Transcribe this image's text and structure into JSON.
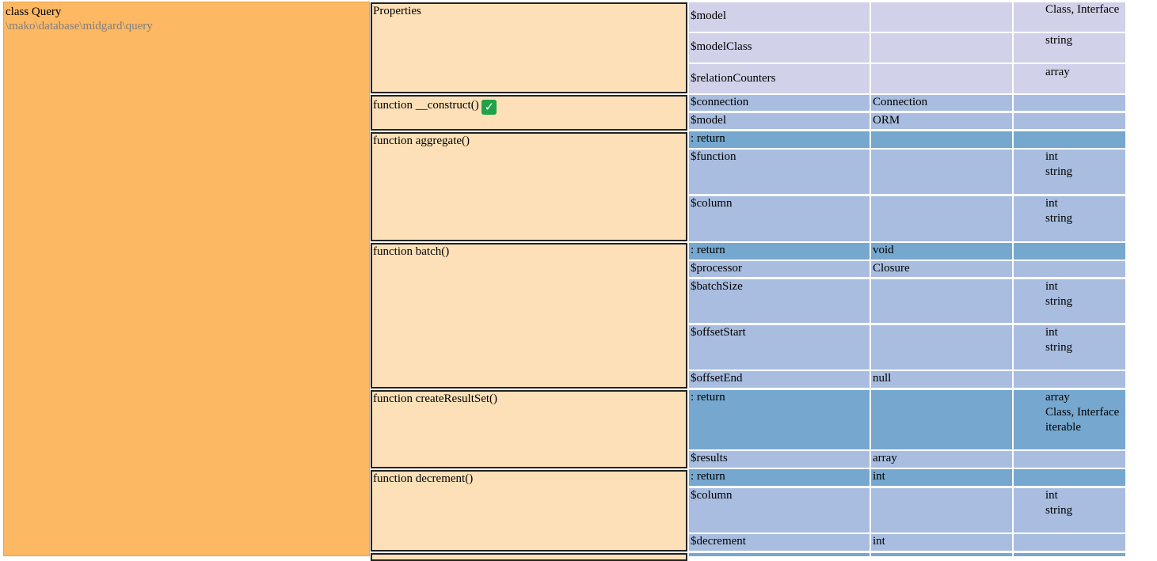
{
  "class": {
    "title": "class Query",
    "namespace": "\\mako\\database\\midgard\\query"
  },
  "functions": {
    "properties": "Properties",
    "construct": "function __construct()",
    "construct_check": "✓",
    "aggregate": "function aggregate()",
    "batch": "function batch()",
    "createResultSet": "function createResultSet()",
    "decrement": "function decrement()"
  },
  "properties": [
    {
      "name": "$model",
      "types": "Class, Interface"
    },
    {
      "name": "$modelClass",
      "types": "string"
    },
    {
      "name": "$relationCounters",
      "types": "array"
    }
  ],
  "construct": [
    {
      "name": "$connection",
      "type": "Connection"
    },
    {
      "name": "$model",
      "type": "ORM"
    }
  ],
  "aggregate": {
    "return": ": return",
    "params": [
      {
        "name": "$function",
        "types": [
          "int",
          "string"
        ]
      },
      {
        "name": "$column",
        "types": [
          "int",
          "string"
        ]
      }
    ]
  },
  "batch": {
    "return": ": return",
    "return_type": "void",
    "processor": {
      "name": "$processor",
      "type": "Closure"
    },
    "params": [
      {
        "name": "$batchSize",
        "types": [
          "int",
          "string"
        ]
      },
      {
        "name": "$offsetStart",
        "types": [
          "int",
          "string"
        ]
      }
    ],
    "offsetEnd": {
      "name": "$offsetEnd",
      "type": "null"
    }
  },
  "createResultSet": {
    "return": ": return",
    "return_types": [
      "array",
      "Class, Interface",
      "iterable"
    ],
    "results": {
      "name": "$results",
      "type": "array"
    }
  },
  "decrement": {
    "return": ": return",
    "return_type": "int",
    "column": {
      "name": "$column",
      "types": [
        "int",
        "string"
      ]
    },
    "amount": {
      "name": "$decrement",
      "type": "int"
    }
  }
}
